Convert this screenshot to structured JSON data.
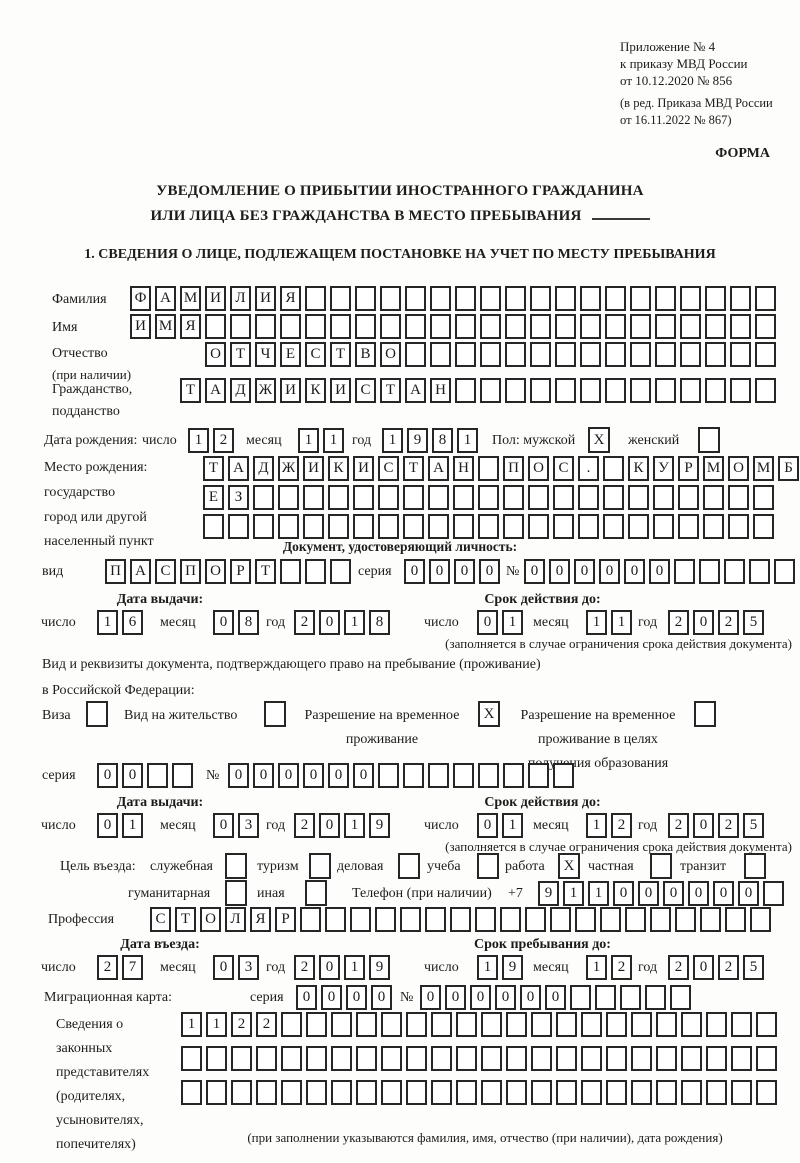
{
  "form": {
    "appendix": [
      "Приложение № 4",
      "к приказу МВД России",
      "от 10.12.2020 № 856"
    ],
    "amendment": [
      "(в ред. Приказа МВД России",
      "от 16.11.2022 № 867)"
    ],
    "form_label": "ФОРМА",
    "title_line1": "УВЕДОМЛЕНИЕ О ПРИБЫТИИ ИНОСТРАННОГО ГРАЖДАНИНА",
    "title_line2": "ИЛИ ЛИЦА БЕЗ ГРАЖДАНСТВА В МЕСТО ПРЕБЫВАНИЯ",
    "section1": "1. СВЕДЕНИЯ О ЛИЦЕ, ПОДЛЕЖАЩЕМ ПОСТАНОВКЕ НА УЧЕТ ПО МЕСТУ ПРЕБЫВАНИЯ"
  },
  "person": {
    "surname": {
      "label": "Фамилия",
      "cells": {
        "v": "ФАМИЛИЯ",
        "n": 26
      }
    },
    "given_name": {
      "label": "Имя",
      "cells": {
        "v": "ИМЯ",
        "n": 26
      }
    },
    "patronymic": {
      "label": "Отчество",
      "note": "(при наличии)",
      "cells": {
        "v": "ОТЧЕСТВО",
        "n": 23
      }
    },
    "citizenship": {
      "label": "Гражданство,",
      "label2": "подданство",
      "cells": {
        "v": "ТАДЖИКИСТАН",
        "n": 24
      }
    },
    "birth_date": {
      "label": "Дата рождения:",
      "day_label": "число",
      "day": {
        "v": "12",
        "n": 2
      },
      "month_label": "месяц",
      "month": {
        "v": "11",
        "n": 2
      },
      "year_label": "год",
      "year": {
        "v": "1981",
        "n": 4
      },
      "sex_label": "Пол: мужской",
      "male_mark": "X",
      "female_label": "женский",
      "female_mark": ""
    },
    "birth_place": {
      "label": "Место рождения:",
      "label2": "государство",
      "label3": "город или другой",
      "label4": "населенный пункт",
      "row1": {
        "v": "ТАДЖИКИСТАН ПОС. КУРМОМБ",
        "n": 24
      },
      "row2": {
        "v": "ЕЗ",
        "n": 23
      },
      "row3": {
        "v": "",
        "n": 23
      }
    }
  },
  "identity_doc": {
    "heading": "Документ, удостоверяющий личность:",
    "kind_label": "вид",
    "kind": {
      "v": "ПАСПОРТ",
      "n": 10
    },
    "series_label": "серия",
    "series": {
      "v": "0000",
      "n": 4
    },
    "number_label": "№",
    "number": {
      "v": "000000",
      "n": 11
    },
    "issue_label": "Дата выдачи:",
    "expiry_label": "Срок действия до:",
    "day_label": "число",
    "month_label": "месяц",
    "year_label": "год",
    "issue": {
      "day": {
        "v": "16",
        "n": 2
      },
      "month": {
        "v": "08",
        "n": 2
      },
      "year": {
        "v": "2018",
        "n": 4
      }
    },
    "expiry": {
      "day": {
        "v": "01",
        "n": 2
      },
      "month": {
        "v": "11",
        "n": 2
      },
      "year": {
        "v": "2025",
        "n": 4
      }
    },
    "note": "(заполняется в случае ограничения срока действия документа)"
  },
  "residence_doc": {
    "intro_line1": "Вид и реквизиты документа, подтверждающего право на пребывание (проживание)",
    "intro_line2": "в Российской Федерации:",
    "visa_label": "Виза",
    "visa_mark": "",
    "permit_label": "Вид на жительство",
    "permit_mark": "",
    "temp_label_line1": "Разрешение на временное",
    "temp_label_line2": "проживание",
    "temp_mark": "X",
    "edu_label_line1": "Разрешение на временное",
    "edu_label_line2": "проживание в целях",
    "edu_label_line3": "получения образования",
    "edu_mark": "",
    "series_label": "серия",
    "series": {
      "v": "00",
      "n": 4
    },
    "number_label": "№",
    "number": {
      "v": "000000",
      "n": 14
    },
    "issue_label": "Дата выдачи:",
    "expiry_label": "Срок действия до:",
    "day_label": "число",
    "month_label": "месяц",
    "year_label": "год",
    "issue": {
      "day": {
        "v": "01",
        "n": 2
      },
      "month": {
        "v": "03",
        "n": 2
      },
      "year": {
        "v": "2019",
        "n": 4
      }
    },
    "expiry": {
      "day": {
        "v": "01",
        "n": 2
      },
      "month": {
        "v": "12",
        "n": 2
      },
      "year": {
        "v": "2025",
        "n": 4
      }
    },
    "note": "(заполняется в случае ограничения срока действия документа)"
  },
  "visit": {
    "purpose_label": "Цель въезда:",
    "purposes": [
      {
        "label": "служебная",
        "mark": ""
      },
      {
        "label": "туризм",
        "mark": ""
      },
      {
        "label": "деловая",
        "mark": ""
      },
      {
        "label": "учеба",
        "mark": ""
      },
      {
        "label": "работа",
        "mark": "X"
      },
      {
        "label": "частная",
        "mark": ""
      },
      {
        "label": "транзит",
        "mark": ""
      },
      {
        "label": "гуманитарная",
        "mark": ""
      },
      {
        "label": "иная",
        "mark": ""
      }
    ],
    "phone_label": "Телефон (при наличии)",
    "phone_prefix": "+7",
    "phone": {
      "v": "911000000",
      "n": 10
    },
    "profession_label": "Профессия",
    "profession": {
      "v": "СТОЛЯР",
      "n": 25
    },
    "entry_date_label": "Дата въезда:",
    "stay_until_label": "Срок пребывания до:",
    "day_label": "число",
    "month_label": "месяц",
    "year_label": "год",
    "entry_date": {
      "day": {
        "v": "27",
        "n": 2
      },
      "month": {
        "v": "03",
        "n": 2
      },
      "year": {
        "v": "2019",
        "n": 4
      }
    },
    "stay_until": {
      "day": {
        "v": "19",
        "n": 2
      },
      "month": {
        "v": "12",
        "n": 2
      },
      "year": {
        "v": "2025",
        "n": 4
      }
    }
  },
  "migration_card": {
    "label": "Миграционная карта:",
    "series_label": "серия",
    "series": {
      "v": "0000",
      "n": 4
    },
    "number_label": "№",
    "number": {
      "v": "000000",
      "n": 11
    }
  },
  "legal_reps": {
    "label_lines": [
      "Сведения о",
      "законных",
      "представителях",
      "(родителях,",
      "усыновителях,",
      "попечителях)"
    ],
    "row1": {
      "v": "1122",
      "n": 24
    },
    "row2": {
      "v": "",
      "n": 24
    },
    "row3": {
      "v": "",
      "n": 24
    },
    "note": "(при заполнении указываются фамилия, имя, отчество (при наличии), дата рождения)"
  },
  "colors": {
    "ink": "#1c1c1c",
    "box_border": "#262626",
    "background": "#fdfdfb"
  }
}
